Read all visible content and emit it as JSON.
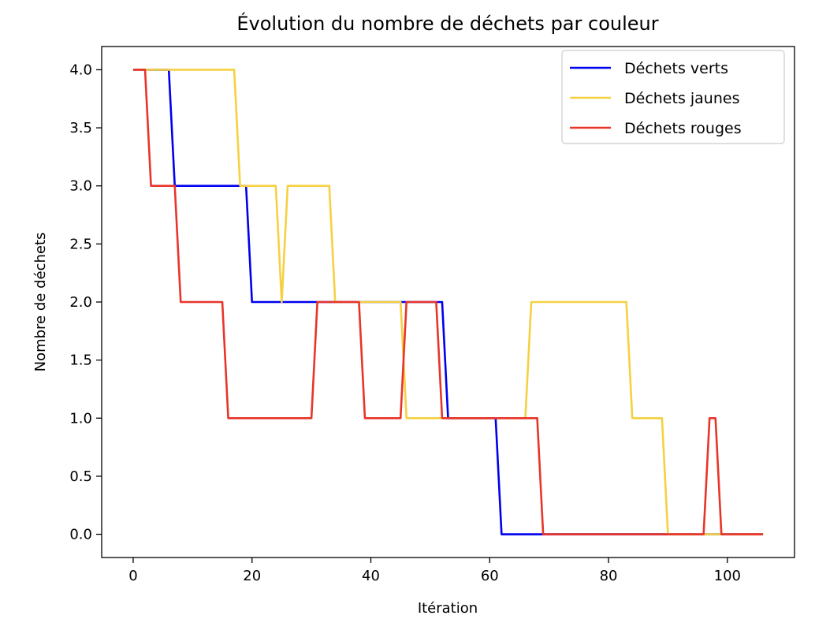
{
  "chart_data": {
    "type": "line",
    "title": "Évolution du nombre de déchets par couleur",
    "xlabel": "Itération",
    "ylabel": "Nombre de déchets",
    "xlim": [
      -5.3,
      111.3
    ],
    "ylim": [
      -0.2,
      4.2
    ],
    "xticks": [
      0,
      20,
      40,
      60,
      80,
      100
    ],
    "xtick_labels": [
      "0",
      "20",
      "40",
      "60",
      "80",
      "100"
    ],
    "yticks": [
      0.0,
      0.5,
      1.0,
      1.5,
      2.0,
      2.5,
      3.0,
      3.5,
      4.0
    ],
    "ytick_labels": [
      "0.0",
      "0.5",
      "1.0",
      "1.5",
      "2.0",
      "2.5",
      "3.0",
      "3.5",
      "4.0"
    ],
    "grid": false,
    "legend_position": "top-right",
    "series": [
      {
        "name": "Déchets verts",
        "color": "#0000ee",
        "points": [
          [
            0,
            4
          ],
          [
            6,
            4
          ],
          [
            7,
            3
          ],
          [
            19,
            3
          ],
          [
            20,
            2
          ],
          [
            52,
            2
          ],
          [
            53,
            1
          ],
          [
            61,
            1
          ],
          [
            62,
            0
          ],
          [
            106,
            0
          ]
        ]
      },
      {
        "name": "Déchets jaunes",
        "color": "#f5d142",
        "points": [
          [
            0,
            4
          ],
          [
            17,
            4
          ],
          [
            18,
            3
          ],
          [
            24,
            3
          ],
          [
            25,
            2
          ],
          [
            26,
            3
          ],
          [
            33,
            3
          ],
          [
            34,
            2
          ],
          [
            45,
            2
          ],
          [
            46,
            1
          ],
          [
            66,
            1
          ],
          [
            67,
            2
          ],
          [
            83,
            2
          ],
          [
            84,
            1
          ],
          [
            89,
            1
          ],
          [
            90,
            0
          ],
          [
            106,
            0
          ]
        ]
      },
      {
        "name": "Déchets rouges",
        "color": "#e8352a",
        "points": [
          [
            0,
            4
          ],
          [
            2,
            4
          ],
          [
            3,
            3
          ],
          [
            7,
            3
          ],
          [
            8,
            2
          ],
          [
            15,
            2
          ],
          [
            16,
            1
          ],
          [
            30,
            1
          ],
          [
            31,
            2
          ],
          [
            38,
            2
          ],
          [
            39,
            1
          ],
          [
            45,
            1
          ],
          [
            46,
            2
          ],
          [
            51,
            2
          ],
          [
            52,
            1
          ],
          [
            68,
            1
          ],
          [
            69,
            0
          ],
          [
            96,
            0
          ],
          [
            97,
            1
          ],
          [
            98,
            1
          ],
          [
            99,
            0
          ],
          [
            106,
            0
          ]
        ]
      }
    ]
  }
}
